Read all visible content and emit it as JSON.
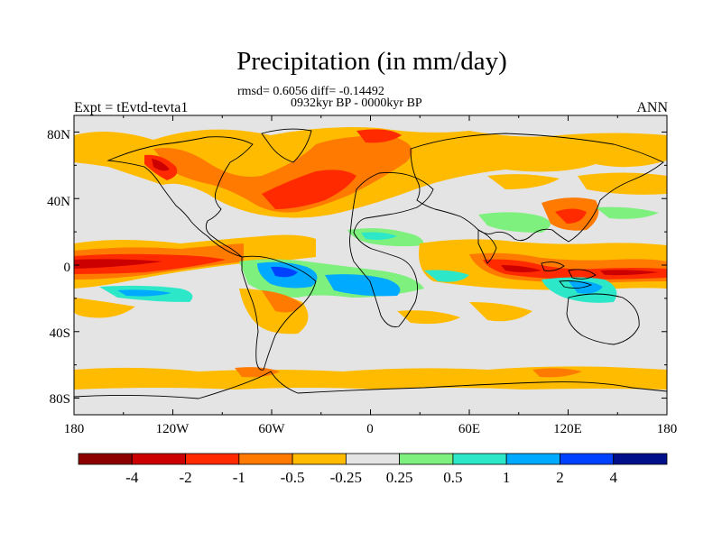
{
  "title": "Precipitation (in mm/day)",
  "stats": "rmsd= 0.6056 diff= -0.14492",
  "period": "0932kyr BP - 0000kyr BP",
  "experiment": "Expt = tEvtd-tevta1",
  "season": "ANN",
  "map": {
    "lon_range": [
      -180,
      180
    ],
    "lat_range": [
      -90,
      90
    ],
    "y_axis_labels": [
      "80N",
      "40N",
      "0",
      "40S",
      "80S"
    ],
    "x_axis_labels": [
      "180",
      "120W",
      "60W",
      "0",
      "60E",
      "120E",
      "180"
    ]
  },
  "colorbar": {
    "labels": [
      "-4",
      "-2",
      "-1",
      "-0.5",
      "-0.25",
      "0.25",
      "0.5",
      "1",
      "2",
      "4"
    ],
    "colors": [
      "#8c0000",
      "#cc0000",
      "#ff2a00",
      "#ff7a00",
      "#ffbb00",
      "#e4e4e4",
      "#7df07d",
      "#2de8c8",
      "#00aaff",
      "#0040ff",
      "#00108a"
    ]
  },
  "colors": {
    "background": "#e4e4e4",
    "coastline": "#000000"
  }
}
